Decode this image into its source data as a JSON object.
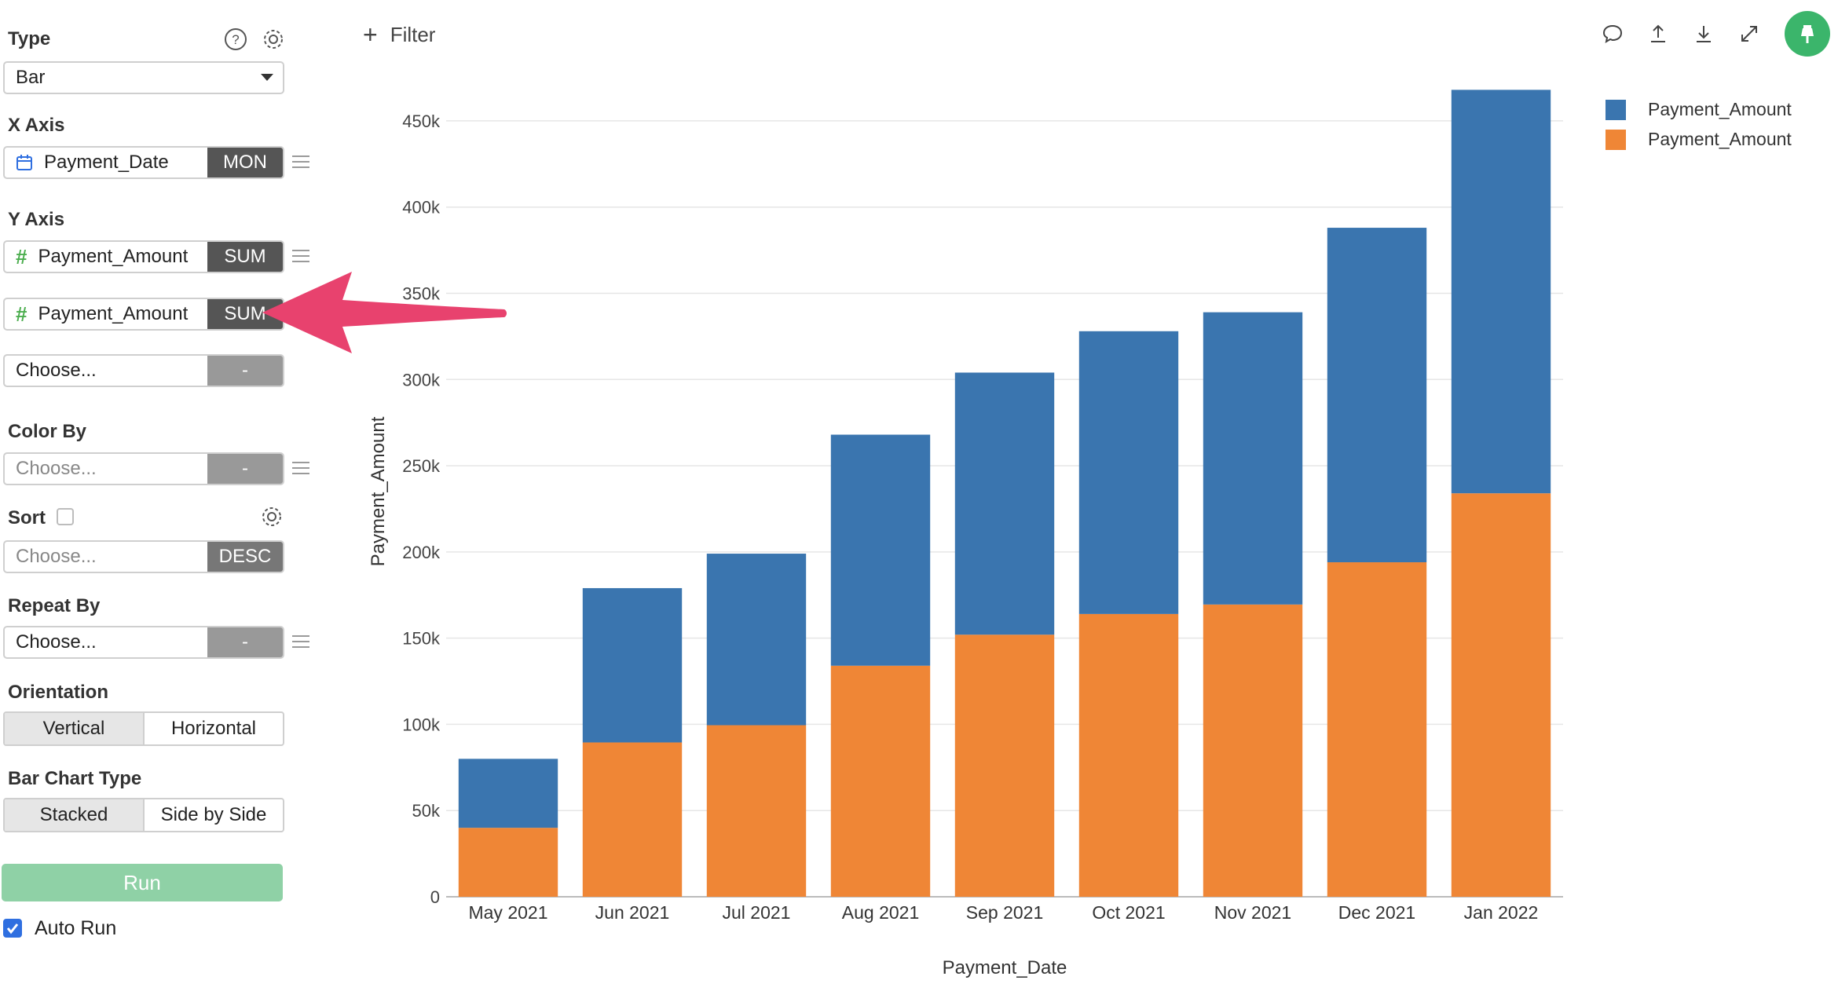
{
  "sidebar": {
    "type": {
      "label": "Type",
      "value": "Bar"
    },
    "x_axis": {
      "label": "X Axis",
      "field": "Payment_Date",
      "agg": "MON"
    },
    "y_axis": {
      "label": "Y Axis",
      "fields": [
        {
          "field": "Payment_Amount",
          "agg": "SUM"
        },
        {
          "field": "Payment_Amount",
          "agg": "SUM"
        }
      ],
      "choose": {
        "placeholder": "Choose...",
        "agg": "-"
      }
    },
    "color_by": {
      "label": "Color By",
      "placeholder": "Choose...",
      "agg": "-"
    },
    "sort": {
      "label": "Sort",
      "placeholder": "Choose...",
      "agg": "DESC"
    },
    "repeat_by": {
      "label": "Repeat By",
      "placeholder": "Choose...",
      "agg": "-"
    },
    "orientation": {
      "label": "Orientation",
      "options": [
        "Vertical",
        "Horizontal"
      ],
      "selected": "Vertical"
    },
    "bar_chart_type": {
      "label": "Bar Chart Type",
      "options": [
        "Stacked",
        "Side by Side"
      ],
      "selected": "Stacked"
    },
    "run_label": "Run",
    "auto_run": {
      "label": "Auto Run",
      "checked": true
    }
  },
  "toolbar": {
    "filter_label": "Filter",
    "icons": [
      "comment-icon",
      "upload-icon",
      "download-icon",
      "expand-icon",
      "pin-icon"
    ]
  },
  "colors": {
    "blue": "#3a75af",
    "orange": "#ef8636",
    "accent_green": "#3bb56b",
    "arrow_pink": "#e8426e"
  },
  "chart_data": {
    "type": "bar",
    "stacked": true,
    "categories": [
      "May 2021",
      "Jun 2021",
      "Jul 2021",
      "Aug 2021",
      "Sep 2021",
      "Oct 2021",
      "Nov 2021",
      "Dec 2021",
      "Jan 2022"
    ],
    "series": [
      {
        "name": "Payment_Amount",
        "color": "#ef8636",
        "values": [
          40000,
          89500,
          99500,
          134000,
          152000,
          164000,
          169500,
          194000,
          234000
        ]
      },
      {
        "name": "Payment_Amount",
        "color": "#3a75af",
        "values": [
          40000,
          89500,
          99500,
          134000,
          152000,
          164000,
          169500,
          194000,
          234000
        ]
      }
    ],
    "legend": [
      {
        "name": "Payment_Amount",
        "color": "#3a75af"
      },
      {
        "name": "Payment_Amount",
        "color": "#ef8636"
      }
    ],
    "legend_position": "top-right",
    "xlabel": "Payment_Date",
    "ylabel": "Payment_Amount",
    "ylim": [
      0,
      470000
    ],
    "yticks": [
      0,
      50000,
      100000,
      150000,
      200000,
      250000,
      300000,
      350000,
      400000,
      450000
    ],
    "ytick_labels": [
      "0",
      "50k",
      "100k",
      "150k",
      "200k",
      "250k",
      "300k",
      "350k",
      "400k",
      "450k"
    ],
    "grid": true
  }
}
